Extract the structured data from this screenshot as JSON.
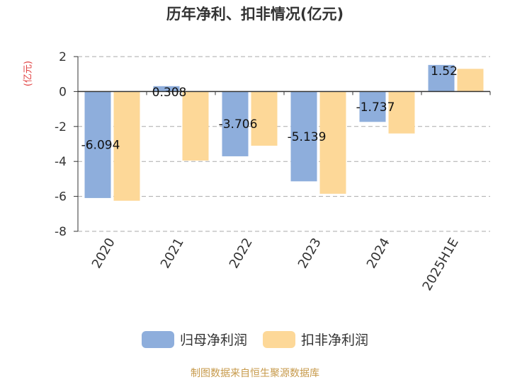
{
  "title": "历年净利、扣非情况(亿元)",
  "unit_label": "(亿元)",
  "source": "制图数据来自恒生聚源数据库",
  "colors": {
    "net_profit": "#8eaedc",
    "deducted": "#fdd898",
    "axis": "#333333",
    "grid": "#aaaaaa"
  },
  "chart_data": {
    "type": "bar",
    "title": "历年净利、扣非情况(亿元)",
    "ylabel": "(亿元)",
    "categories": [
      "2020",
      "2021",
      "2022",
      "2023",
      "2024",
      "2025H1E"
    ],
    "yticks": [
      2,
      0,
      -2,
      -4,
      -6,
      -8
    ],
    "ylim": [
      -8,
      2
    ],
    "grid": true,
    "legend_position": "bottom",
    "series": [
      {
        "name": "归母净利润",
        "color": "#8eaedc",
        "values": [
          -6.094,
          0.308,
          -3.706,
          -5.139,
          -1.737,
          1.52
        ],
        "labels": [
          "-6.094",
          "0.308",
          "-3.706",
          "-5.139",
          "-1.737",
          "1.52"
        ]
      },
      {
        "name": "扣非净利润",
        "color": "#fdd898",
        "values": [
          -6.25,
          -3.95,
          -3.1,
          -5.85,
          -2.4,
          1.3
        ]
      }
    ]
  }
}
